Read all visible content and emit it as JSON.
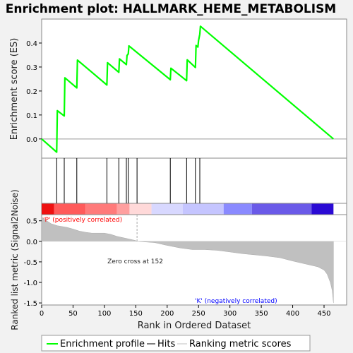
{
  "chart_data": {
    "title": "Enrichment plot: HALLMARK_HEME_METABOLISM",
    "type": "line",
    "xlabel": "Rank in Ordered Dataset",
    "x_ticks": [
      0,
      50,
      100,
      150,
      200,
      250,
      300,
      350,
      400,
      450
    ],
    "xlim": [
      0,
      486
    ],
    "es_panel": {
      "ylabel": "Enrichment score (ES)",
      "ylim": [
        -0.08,
        0.5
      ],
      "y_ticks": [
        0.0,
        0.1,
        0.2,
        0.3,
        0.4
      ],
      "y_tick_labels": [
        "0.0",
        "0.1",
        "0.2",
        "0.3",
        "0.4"
      ],
      "series": [
        {
          "name": "Enrichment profile",
          "color": "#00ff00",
          "x": [
            0,
            24,
            25,
            36,
            37,
            56,
            57,
            104,
            105,
            123,
            124,
            135,
            136,
            138,
            139,
            205,
            206,
            231,
            232,
            245,
            246,
            249,
            250,
            252,
            253,
            465
          ],
          "y": [
            0.0,
            -0.055,
            0.118,
            0.096,
            0.255,
            0.213,
            0.329,
            0.225,
            0.318,
            0.278,
            0.334,
            0.31,
            0.348,
            0.355,
            0.388,
            0.247,
            0.295,
            0.243,
            0.33,
            0.298,
            0.39,
            0.383,
            0.41,
            0.437,
            0.47,
            0.0
          ]
        }
      ]
    },
    "hits": {
      "name": "Hits",
      "positions": [
        24,
        36,
        56,
        104,
        123,
        135,
        138,
        152,
        205,
        231,
        245,
        252
      ]
    },
    "rank_panel": {
      "ylabel": "Ranked list metric (Signal2Noise)",
      "ylim": [
        -1.55,
        0.65
      ],
      "y_ticks": [
        0.5,
        0.0,
        -0.5,
        -1.0,
        -1.5
      ],
      "y_tick_labels": [
        "0.5",
        "0.0",
        "-0.5",
        "-1.0",
        "-1.5"
      ],
      "series": [
        {
          "name": "Ranking metric scores",
          "color": "#c0c0c0",
          "x": [
            0,
            3,
            8,
            15,
            25,
            40,
            50,
            60,
            70,
            80,
            100,
            110,
            120,
            135,
            150,
            152,
            160,
            180,
            200,
            220,
            240,
            260,
            280,
            300,
            320,
            340,
            360,
            380,
            400,
            420,
            440,
            450,
            455,
            460,
            463,
            465
          ],
          "y": [
            0.6,
            0.55,
            0.5,
            0.43,
            0.38,
            0.34,
            0.3,
            0.25,
            0.22,
            0.2,
            0.2,
            0.17,
            0.12,
            0.07,
            0.02,
            0.0,
            -0.01,
            -0.03,
            -0.1,
            -0.16,
            -0.2,
            -0.2,
            -0.22,
            -0.26,
            -0.3,
            -0.33,
            -0.36,
            -0.4,
            -0.48,
            -0.55,
            -0.62,
            -0.7,
            -0.8,
            -1.0,
            -1.2,
            -1.5
          ]
        }
      ],
      "zero_cross_label": "Zero cross at 152",
      "zero_cross_x": 152,
      "pos_label": "'P' (positively correlated)",
      "neg_label": "'K' (negatively correlated)",
      "pos_color": "#ff0000",
      "neg_color": "#0000ff"
    },
    "color_bar": {
      "segments": [
        {
          "from": 0,
          "to": 20,
          "color": "#ee1111"
        },
        {
          "from": 20,
          "to": 70,
          "color": "#ff5a5a"
        },
        {
          "from": 70,
          "to": 120,
          "color": "#ff7a7a"
        },
        {
          "from": 120,
          "to": 140,
          "color": "#ff9f9f"
        },
        {
          "from": 140,
          "to": 175,
          "color": "#ffd9d9"
        },
        {
          "from": 175,
          "to": 225,
          "color": "#d8d8ff"
        },
        {
          "from": 225,
          "to": 290,
          "color": "#c5c5ff"
        },
        {
          "from": 290,
          "to": 335,
          "color": "#8a8aff"
        },
        {
          "from": 335,
          "to": 430,
          "color": "#6a5ae8"
        },
        {
          "from": 430,
          "to": 465,
          "color": "#2a0ad4"
        }
      ]
    },
    "legend": {
      "placement": "bottom",
      "items": [
        {
          "label": "Enrichment profile",
          "color": "#00ff00"
        },
        {
          "label": "Hits",
          "color": "#000000"
        },
        {
          "label": "Ranking metric scores",
          "color": "#c0c0c0"
        }
      ]
    }
  }
}
